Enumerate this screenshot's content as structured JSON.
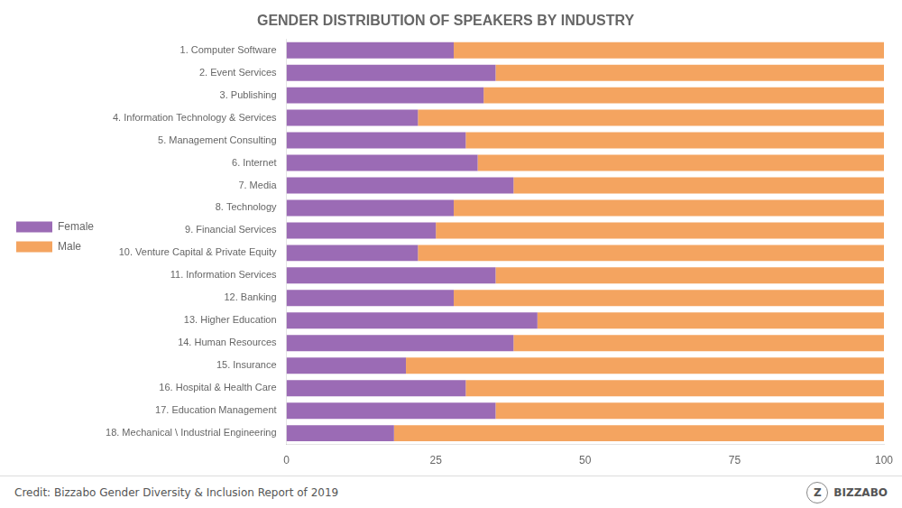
{
  "chart_data": {
    "type": "bar",
    "title": "GENDER DISTRIBUTION OF SPEAKERS BY INDUSTRY",
    "orientation": "horizontal",
    "stacked": true,
    "grid": false,
    "legend": "left",
    "categories": [
      "1. Computer Software",
      "2. Event Services",
      "3. Publishing",
      "4. Information Technology & Services",
      "5. Management Consulting",
      "6. Internet",
      "7. Media",
      "8. Technology",
      "9. Financial Services",
      "10. Venture Capital & Private Equity",
      "11. Information Services",
      "12. Banking",
      "13. Higher Education",
      "14. Human Resources",
      "15. Insurance",
      "16. Hospital & Health Care",
      "17. Education Management",
      "18. Mechanical \\ Industrial Engineering"
    ],
    "series": [
      {
        "name": "Female",
        "color": "#9b6bb5",
        "values": [
          28,
          35,
          33,
          22,
          30,
          32,
          38,
          28,
          25,
          22,
          35,
          28,
          42,
          38,
          20,
          30,
          35,
          18
        ]
      },
      {
        "name": "Male",
        "color": "#f4a460",
        "values": [
          72,
          65,
          67,
          78,
          70,
          68,
          62,
          72,
          75,
          78,
          65,
          72,
          58,
          62,
          80,
          70,
          65,
          82
        ]
      }
    ],
    "xlim": [
      0,
      100
    ],
    "xticks": [
      0,
      25,
      50,
      75,
      100
    ],
    "annotations": [
      "Credit: Bizzabo Gender Diversity & Inclusion Report of 2019",
      "Z",
      "BIZZABO"
    ]
  }
}
